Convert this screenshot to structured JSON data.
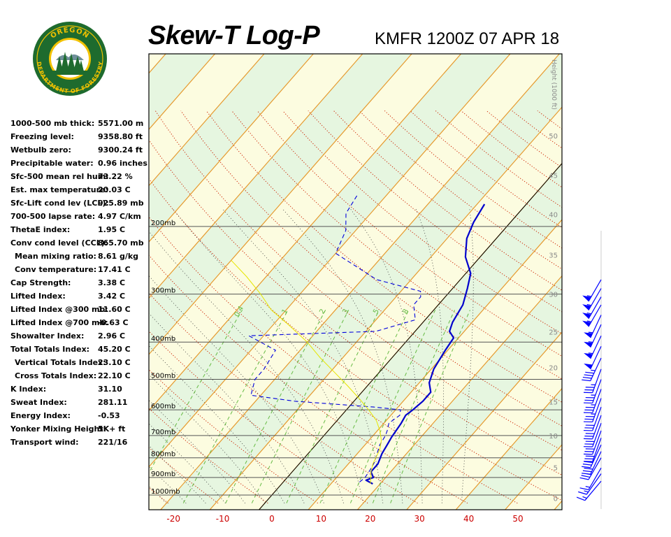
{
  "header": {
    "title": "Skew-T Log-P",
    "subtitle": "KMFR 1200Z 07 APR 18"
  },
  "logo": {
    "top_text": "OREGON",
    "bottom_text": "DEPARTMENT OF FORESTRY",
    "colors": {
      "ring": "#1e6b2e",
      "text": "#f2c200",
      "sky": "#ffffff"
    }
  },
  "indices": [
    {
      "label": "1000-500 mb thick:",
      "value": "5571.00 m",
      "indent": false
    },
    {
      "label": "Freezing level:",
      "value": "9358.80 ft",
      "indent": false
    },
    {
      "label": "Wetbulb zero:",
      "value": "9300.24 ft",
      "indent": false
    },
    {
      "label": "Precipitable water:",
      "value": "0.96 inches",
      "indent": false
    },
    {
      "label": "Sfc-500 mean rel hum:",
      "value": "73.22 %",
      "indent": false
    },
    {
      "label": "Est. max temperature:",
      "value": "20.03 C",
      "indent": false
    },
    {
      "label": "Sfc-Lift cond lev (LCL):",
      "value": "925.89 mb",
      "indent": false
    },
    {
      "label": "700-500 lapse rate:",
      "value": "4.97 C/km",
      "indent": false
    },
    {
      "label": "ThetaE index:",
      "value": "1.95 C",
      "indent": false
    },
    {
      "label": "Conv cond level (CCL):",
      "value": "865.70 mb",
      "indent": false
    },
    {
      "label": "Mean mixing ratio:",
      "value": "8.61 g/kg",
      "indent": true
    },
    {
      "label": "Conv temperature:",
      "value": "17.41 C",
      "indent": true
    },
    {
      "label": "Cap Strength:",
      "value": "3.38 C",
      "indent": false
    },
    {
      "label": "Lifted Index:",
      "value": "3.42 C",
      "indent": false
    },
    {
      "label": "Lifted Index @300 mb:",
      "value": "11.60 C",
      "indent": false
    },
    {
      "label": "Lifted Index @700 mb:",
      "value": "-0.63 C",
      "indent": false
    },
    {
      "label": "Showalter Index:",
      "value": "2.96 C",
      "indent": false
    },
    {
      "label": "Total Totals Index:",
      "value": "45.20 C",
      "indent": false
    },
    {
      "label": "Vertical Totals Index:",
      "value": "23.10 C",
      "indent": true
    },
    {
      "label": "Cross Totals Index:",
      "value": "22.10 C",
      "indent": true
    },
    {
      "label": "K Index:",
      "value": "31.10",
      "indent": false
    },
    {
      "label": "Sweat Index:",
      "value": "281.11",
      "indent": false
    },
    {
      "label": "Energy Index:",
      "value": "-0.53",
      "indent": false
    },
    {
      "label": "Yonker Mixing Height:",
      "value": "5K+ ft",
      "indent": false
    },
    {
      "label": "Transport wind:",
      "value": "221/16",
      "indent": false
    }
  ],
  "chart_data": {
    "type": "line",
    "xlim": [
      -25,
      60
    ],
    "x_ticks": [
      -20,
      -10,
      0,
      10,
      20,
      30,
      40,
      50
    ],
    "pressure_levels": [
      {
        "p": 200,
        "label": "200mb"
      },
      {
        "p": 300,
        "label": "300mb"
      },
      {
        "p": 400,
        "label": "400mb"
      },
      {
        "p": 500,
        "label": "500mb"
      },
      {
        "p": 600,
        "label": "600mb"
      },
      {
        "p": 700,
        "label": "700mb"
      },
      {
        "p": 800,
        "label": "800mb"
      },
      {
        "p": 900,
        "label": "900mb"
      },
      {
        "p": 1000,
        "label": "1000mb"
      }
    ],
    "height_axis": {
      "label": "Height (1000 ft)",
      "ticks": [
        {
          "label": "0",
          "p": 1018
        },
        {
          "label": "5",
          "p": 847
        },
        {
          "label": "10",
          "p": 700
        },
        {
          "label": "15",
          "p": 572
        },
        {
          "label": "20",
          "p": 466
        },
        {
          "label": "25",
          "p": 376
        },
        {
          "label": "30",
          "p": 300
        },
        {
          "label": "35",
          "p": 237
        },
        {
          "label": "40",
          "p": 186
        },
        {
          "label": "45",
          "p": 147
        },
        {
          "label": "50",
          "p": 116
        }
      ]
    },
    "mixing_ratio_labels": [
      "0.4",
      "1",
      "2",
      "3",
      "5",
      "8"
    ],
    "series": [
      {
        "key": "temperature",
        "color": "#0000cc",
        "style": "solid",
        "points": [
          [
            935,
            18.5
          ],
          [
            915,
            16.5
          ],
          [
            900,
            17.5
          ],
          [
            870,
            16
          ],
          [
            830,
            16
          ],
          [
            780,
            15
          ],
          [
            740,
            14.5
          ],
          [
            705,
            14
          ],
          [
            680,
            13.8
          ],
          [
            650,
            13.5
          ],
          [
            620,
            13
          ],
          [
            600,
            13.5
          ],
          [
            570,
            14
          ],
          [
            540,
            14
          ],
          [
            510,
            12
          ],
          [
            470,
            10.5
          ],
          [
            420,
            9.5
          ],
          [
            390,
            9
          ],
          [
            375,
            7
          ],
          [
            355,
            6
          ],
          [
            320,
            5
          ],
          [
            290,
            3
          ],
          [
            265,
            1
          ],
          [
            240,
            -3
          ],
          [
            215,
            -6
          ],
          [
            195,
            -7.5
          ],
          [
            175,
            -8.5
          ]
        ]
      },
      {
        "key": "dewpoint",
        "color": "#0000dd",
        "style": "dashed",
        "points": [
          [
            925,
            15.5
          ],
          [
            900,
            15.8
          ],
          [
            860,
            15.5
          ],
          [
            820,
            15
          ],
          [
            780,
            14
          ],
          [
            740,
            13
          ],
          [
            700,
            12.5
          ],
          [
            680,
            12
          ],
          [
            650,
            11
          ],
          [
            620,
            11.8
          ],
          [
            600,
            11
          ],
          [
            590,
            5
          ],
          [
            570,
            -12
          ],
          [
            550,
            -22
          ],
          [
            500,
            -24
          ],
          [
            470,
            -24
          ],
          [
            420,
            -25
          ],
          [
            385,
            -33
          ],
          [
            375,
            -8
          ],
          [
            350,
            -2
          ],
          [
            320,
            -5
          ],
          [
            305,
            -5
          ],
          [
            295,
            -6
          ],
          [
            275,
            -17
          ],
          [
            235,
            -30
          ],
          [
            205,
            -32
          ],
          [
            185,
            -35
          ],
          [
            165,
            -36
          ]
        ]
      },
      {
        "key": "parcel",
        "color": "#e6e600",
        "style": "solid",
        "points": [
          [
            935,
            18
          ],
          [
            900,
            17
          ],
          [
            870,
            16
          ],
          [
            830,
            15
          ],
          [
            800,
            14.5
          ],
          [
            760,
            13.8
          ],
          [
            720,
            12.5
          ],
          [
            680,
            10.5
          ],
          [
            640,
            8
          ],
          [
            600,
            4.5
          ],
          [
            560,
            0.5
          ],
          [
            520,
            -4
          ],
          [
            480,
            -9
          ],
          [
            440,
            -14.5
          ],
          [
            400,
            -20
          ],
          [
            360,
            -27
          ],
          [
            330,
            -33
          ],
          [
            300,
            -38
          ],
          [
            270,
            -44
          ],
          [
            245,
            -50
          ]
        ]
      }
    ],
    "winds": [
      {
        "p": 920,
        "dir": 220,
        "spd": 15
      },
      {
        "p": 880,
        "dir": 215,
        "spd": 15
      },
      {
        "p": 850,
        "dir": 210,
        "spd": 15
      },
      {
        "p": 800,
        "dir": 210,
        "spd": 25
      },
      {
        "p": 770,
        "dir": 205,
        "spd": 30
      },
      {
        "p": 740,
        "dir": 205,
        "spd": 30
      },
      {
        "p": 710,
        "dir": 200,
        "spd": 30
      },
      {
        "p": 680,
        "dir": 200,
        "spd": 30
      },
      {
        "p": 650,
        "dir": 200,
        "spd": 30
      },
      {
        "p": 620,
        "dir": 200,
        "spd": 30
      },
      {
        "p": 590,
        "dir": 200,
        "spd": 30
      },
      {
        "p": 560,
        "dir": 200,
        "spd": 35
      },
      {
        "p": 530,
        "dir": 200,
        "spd": 35
      },
      {
        "p": 500,
        "dir": 200,
        "spd": 35
      },
      {
        "p": 470,
        "dir": 200,
        "spd": 35
      },
      {
        "p": 440,
        "dir": 205,
        "spd": 45
      },
      {
        "p": 410,
        "dir": 205,
        "spd": 50
      },
      {
        "p": 385,
        "dir": 205,
        "spd": 55
      },
      {
        "p": 360,
        "dir": 205,
        "spd": 55
      },
      {
        "p": 340,
        "dir": 205,
        "spd": 55
      },
      {
        "p": 320,
        "dir": 210,
        "spd": 55
      },
      {
        "p": 305,
        "dir": 210,
        "spd": 55
      },
      {
        "p": 290,
        "dir": 210,
        "spd": 55
      },
      {
        "p": 275,
        "dir": 210,
        "spd": 55
      }
    ]
  }
}
